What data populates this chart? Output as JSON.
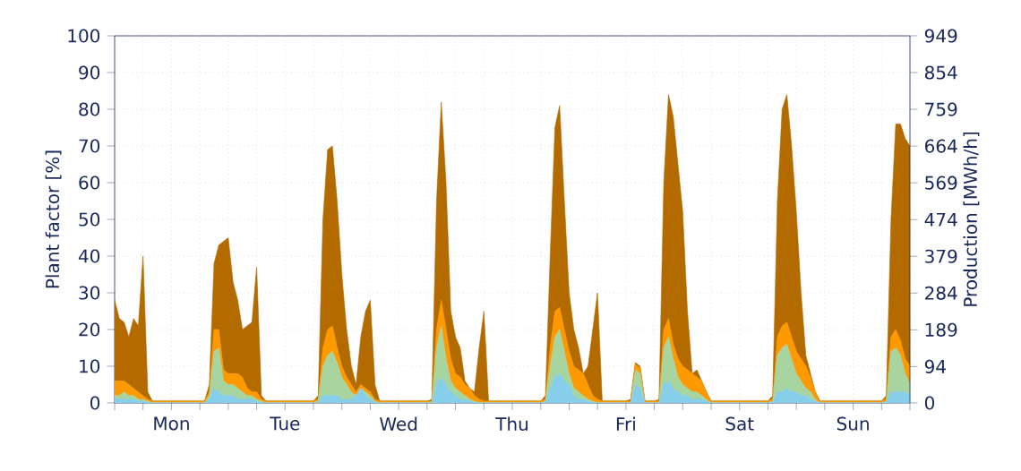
{
  "chart_data": {
    "type": "area",
    "stacked": true,
    "grid": true,
    "ylabel": "Plant factor [%]",
    "y2label": "Production [MWh/h]",
    "categories": [
      null,
      null,
      null,
      null,
      null,
      null,
      null,
      null,
      null,
      null,
      null,
      null,
      "Mon",
      null,
      null,
      null,
      null,
      null,
      null,
      null,
      null,
      null,
      null,
      null,
      null,
      null,
      null,
      null,
      null,
      null,
      null,
      null,
      null,
      null,
      null,
      null,
      "Tue",
      null,
      null,
      null,
      null,
      null,
      null,
      null,
      null,
      null,
      null,
      null,
      null,
      null,
      null,
      null,
      null,
      null,
      null,
      null,
      null,
      null,
      null,
      null,
      "Wed",
      null,
      null,
      null,
      null,
      null,
      null,
      null,
      null,
      null,
      null,
      null,
      null,
      null,
      null,
      null,
      null,
      null,
      null,
      null,
      null,
      null,
      null,
      null,
      "Thu",
      null,
      null,
      null,
      null,
      null,
      null,
      null,
      null,
      null,
      null,
      null,
      null,
      null,
      null,
      null,
      null,
      null,
      null,
      null,
      null,
      null,
      null,
      null,
      "Fri",
      null,
      null,
      null,
      null,
      null,
      null,
      null,
      null,
      null,
      null,
      null,
      null,
      null,
      null,
      null,
      null,
      null,
      null,
      null,
      null,
      null,
      null,
      null,
      "Sat",
      null,
      null,
      null,
      null,
      null,
      null,
      null,
      null,
      null,
      null,
      null,
      null,
      null,
      null,
      null,
      null,
      null,
      null,
      null,
      null,
      null,
      null,
      null,
      "Sun",
      null,
      null,
      null,
      null,
      null,
      null,
      null,
      null,
      null,
      null,
      null,
      null
    ],
    "series": [
      {
        "color": "#87ceeb",
        "values": [
          1,
          1,
          1,
          1,
          1,
          0.5,
          0.5,
          0,
          0,
          0,
          0,
          0,
          0,
          0,
          0,
          0,
          0,
          0,
          0,
          0,
          1,
          4,
          3,
          2,
          2,
          2,
          1,
          1,
          1,
          1,
          0.5,
          0,
          0,
          0,
          0,
          0,
          0,
          0,
          0,
          0,
          0,
          0,
          0,
          0.2,
          2,
          2,
          2,
          2,
          1,
          1,
          1,
          2,
          4,
          2,
          1,
          0,
          0,
          0,
          0,
          0,
          0,
          0,
          0,
          0,
          0,
          0,
          0,
          0,
          5,
          7,
          5,
          3,
          2,
          1,
          1,
          0.5,
          0,
          0,
          0,
          0,
          0,
          0,
          0,
          0,
          0,
          0,
          0,
          0,
          0,
          0,
          0,
          0.2,
          4,
          7,
          8,
          6,
          5,
          2,
          1,
          1,
          0.5,
          0,
          0,
          0,
          0,
          0,
          0,
          0,
          0,
          0,
          5,
          4,
          0,
          0,
          0,
          0,
          5,
          6,
          4,
          3,
          2,
          2,
          1,
          1,
          1,
          0.5,
          0,
          0,
          0,
          0,
          0,
          0,
          0,
          0,
          0,
          0,
          0,
          0,
          0,
          0.2,
          3,
          3,
          4,
          3,
          3,
          2,
          2,
          1,
          0.5,
          0,
          0,
          0,
          0,
          0,
          0,
          0,
          0,
          0,
          0,
          0,
          0,
          0,
          0,
          0.2,
          3,
          3,
          3,
          3,
          2
        ]
      },
      {
        "color": "#a8d4a0",
        "values": [
          1,
          1,
          2,
          1,
          1,
          0.5,
          0.5,
          0.5,
          0,
          0,
          0,
          0,
          0,
          0,
          0,
          0,
          0,
          0,
          0,
          0,
          1,
          10,
          12,
          4,
          3,
          3,
          3,
          2,
          1,
          1,
          0.5,
          0.5,
          0,
          0,
          0,
          0,
          0,
          0,
          0,
          0,
          0,
          0,
          0,
          0.3,
          8,
          11,
          12,
          9,
          6,
          4,
          2,
          0,
          0,
          1,
          1,
          0.5,
          0,
          0,
          0,
          0,
          0,
          0,
          0,
          0,
          0,
          0,
          0,
          0.2,
          10,
          14,
          7,
          3,
          2,
          2,
          1,
          0.5,
          0.5,
          0,
          0,
          0,
          0,
          0,
          0,
          0,
          0,
          0,
          0,
          0,
          0,
          0,
          0,
          0.3,
          6,
          11,
          12,
          8,
          3,
          2,
          2,
          1,
          0.5,
          0.5,
          0,
          0,
          0,
          0,
          0,
          0,
          0,
          0,
          4,
          4,
          0,
          0,
          0,
          0,
          10,
          12,
          8,
          4,
          3,
          2,
          2,
          2,
          1,
          0.5,
          0,
          0,
          0,
          0,
          0,
          0,
          0,
          0,
          0,
          0,
          0,
          0,
          0,
          0.3,
          10,
          12,
          12,
          9,
          5,
          4,
          2,
          2,
          0.5,
          0,
          0,
          0,
          0,
          0,
          0,
          0,
          0,
          0,
          0,
          0,
          0,
          0,
          0,
          0.3,
          11,
          12,
          10,
          5,
          3
        ]
      },
      {
        "color": "#ff9900",
        "values": [
          4,
          4,
          3,
          3,
          2,
          2,
          1,
          0.5,
          0.5,
          0.5,
          0.5,
          0.5,
          0.5,
          0.5,
          0.5,
          0.5,
          0.5,
          0.5,
          0.5,
          0.5,
          1,
          6,
          5,
          3,
          3,
          3,
          4,
          4,
          2,
          1,
          2,
          0.5,
          0.5,
          0.5,
          0.5,
          0.5,
          0.5,
          0.5,
          0.5,
          0.5,
          0.5,
          0.5,
          0.5,
          0.5,
          5,
          7,
          7,
          4,
          3,
          2,
          2,
          1,
          1,
          1,
          1,
          0.5,
          0.5,
          0.5,
          0.5,
          0.5,
          0.5,
          0.5,
          0.5,
          0.5,
          0.5,
          0.5,
          0.5,
          0.3,
          5,
          7,
          8,
          6,
          4,
          4,
          3,
          3,
          1.5,
          1,
          0.5,
          0.5,
          0.5,
          0.5,
          0.5,
          0.5,
          0.5,
          0.5,
          0.5,
          0.5,
          0.5,
          0.5,
          0.5,
          0.5,
          5,
          7,
          6,
          6,
          6,
          6,
          6,
          6,
          4,
          1.5,
          1,
          0.5,
          0.5,
          0.5,
          0.5,
          0.5,
          0.5,
          0.5,
          1.5,
          1.5,
          0.5,
          0.5,
          0.5,
          0.5,
          5,
          5,
          4,
          5,
          5,
          5,
          5,
          4,
          4,
          2,
          0.5,
          0.5,
          0.5,
          0.5,
          0.5,
          0.5,
          0.5,
          0.5,
          0.5,
          0.5,
          0.5,
          0.5,
          0.5,
          0.5,
          5,
          6,
          6,
          6,
          6,
          6,
          6,
          4,
          2,
          0.5,
          0.5,
          0.5,
          0.5,
          0.5,
          0.5,
          0.5,
          0.5,
          0.5,
          0.5,
          0.5,
          0.5,
          0.5,
          0.5,
          0.5,
          4,
          5,
          4,
          4,
          5
        ]
      },
      {
        "color": "#b36b00",
        "values": [
          22,
          17,
          16,
          13,
          19,
          18,
          38,
          2,
          0,
          0,
          0,
          0,
          0,
          0,
          0,
          0,
          0,
          0,
          0,
          0,
          2,
          18,
          23,
          35,
          37,
          25,
          20,
          13,
          17,
          19,
          34,
          1,
          0,
          0,
          0,
          0,
          0,
          0,
          0,
          0,
          0,
          0,
          0,
          1,
          35,
          49,
          49,
          40,
          25,
          13,
          5,
          2,
          13,
          21,
          25,
          4,
          0,
          0,
          0,
          0,
          0,
          0,
          0,
          0,
          0,
          0,
          0,
          0.5,
          35,
          54,
          40,
          13,
          10,
          8,
          1,
          0,
          1,
          14,
          24.5,
          0,
          0,
          0,
          0,
          0,
          0,
          0,
          0,
          0,
          0,
          0,
          0,
          1,
          25,
          50,
          55,
          35,
          16,
          10,
          6,
          0,
          5,
          18,
          29,
          0,
          0,
          0,
          0,
          0,
          0,
          0.5,
          0.5,
          0.5,
          0,
          0,
          0,
          0.5,
          40,
          61,
          62,
          53,
          42,
          16,
          0,
          2,
          0,
          0,
          0,
          0,
          0,
          0,
          0,
          0,
          0,
          0,
          0,
          0,
          0,
          0,
          0,
          1,
          37,
          59,
          62,
          52,
          38,
          18,
          3,
          1,
          0,
          0,
          0,
          0,
          0,
          0,
          0,
          0,
          0,
          0,
          0,
          0,
          0,
          0,
          0,
          1,
          32,
          56,
          59,
          60,
          60
        ]
      }
    ],
    "ylim": [
      0,
      100
    ],
    "yticks": [
      0,
      10,
      20,
      30,
      40,
      50,
      60,
      70,
      80,
      90,
      100
    ],
    "y2lim": [
      0,
      949
    ],
    "y2ticks": [
      0,
      94,
      189,
      284,
      379,
      474,
      569,
      664,
      759,
      854,
      949
    ]
  }
}
